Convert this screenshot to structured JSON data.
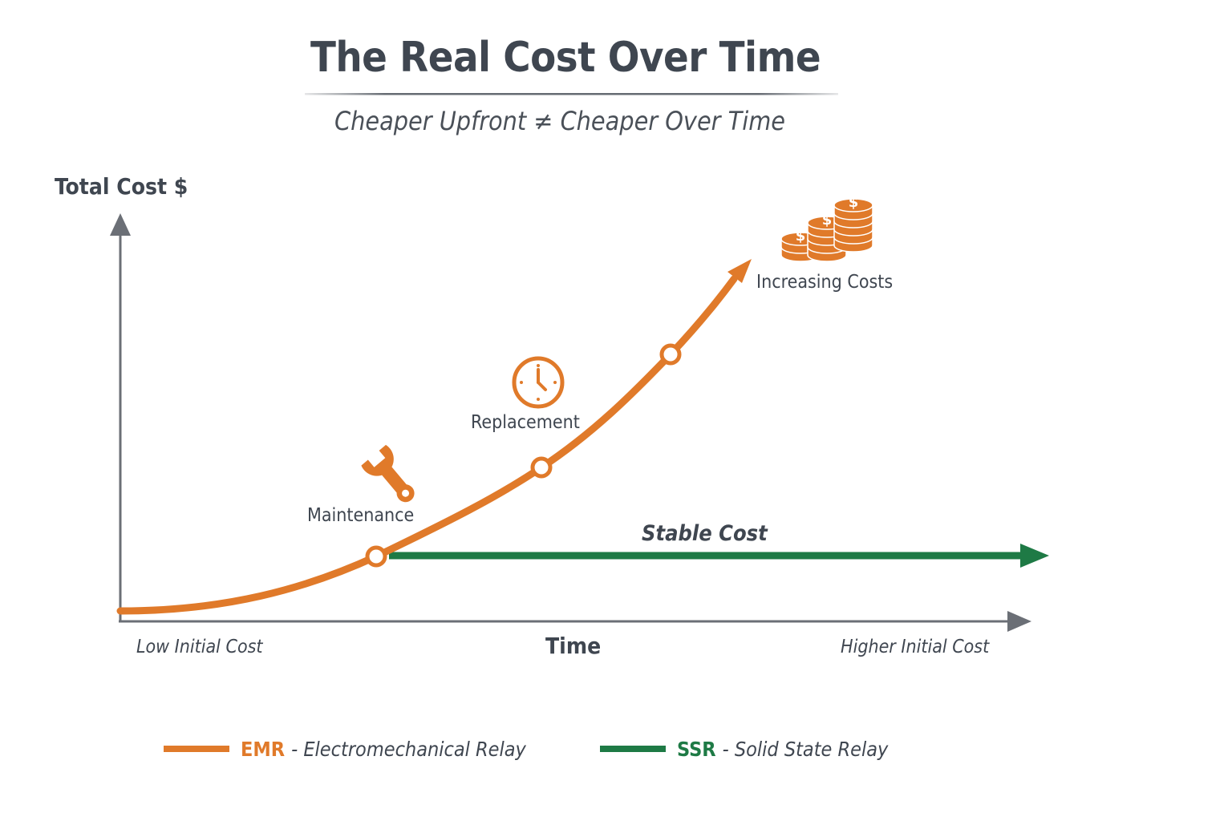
{
  "title": "The Real Cost Over Time",
  "subtitle": "Cheaper Upfront ≠ Cheaper Over Time",
  "axes": {
    "y_label": "Total Cost $",
    "x_label": "Time",
    "x_start_label": "Low Initial Cost",
    "x_end_label": "Higher Initial Cost"
  },
  "annotations": {
    "maintenance": "Maintenance",
    "replacement": "Replacement",
    "increasing": "Increasing Costs",
    "stable": "Stable Cost"
  },
  "icons": {
    "maintenance": "wrench-icon",
    "replacement": "clock-icon",
    "increasing": "coin-stacks-icon",
    "coin_symbol": "$"
  },
  "legend": [
    {
      "abbr": "EMR",
      "desc": "- Electromechanical Relay",
      "color": "#e07a2a"
    },
    {
      "abbr": "SSR",
      "desc": "- Solid State Relay",
      "color": "#1e7a45"
    }
  ],
  "colors": {
    "emr": "#e07a2a",
    "ssr": "#1e7a45",
    "axis": "#6b6f76",
    "text": "#3f4650"
  },
  "curves": {
    "emr": {
      "shape": "rising-exponential",
      "milestones": [
        "Maintenance",
        "Replacement",
        "Increasing Costs"
      ]
    },
    "ssr": {
      "shape": "flat",
      "starts_at_milestone": "Maintenance"
    }
  }
}
